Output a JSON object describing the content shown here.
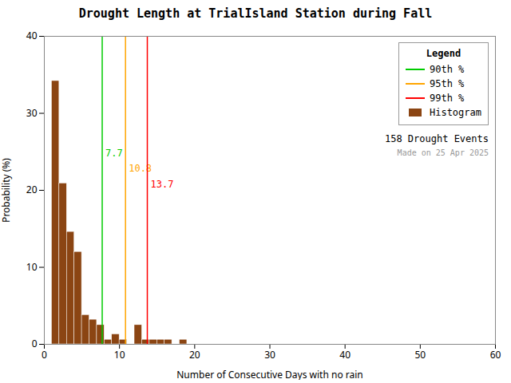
{
  "chart_data": {
    "type": "histogram",
    "title": "Drought Length at TrialIsland Station during Fall",
    "xlabel": "Number of Consecutive Days with no rain",
    "ylabel": "Probability (%)",
    "bins": [
      1,
      2,
      3,
      4,
      5,
      6,
      7,
      8,
      9,
      10,
      11,
      12,
      13,
      14,
      15,
      16,
      17,
      18,
      19,
      20,
      21
    ],
    "series": [
      {
        "name": "90th %",
        "type": "vline",
        "color": "#00CC00",
        "values": [
          7.7
        ],
        "data_labels": true
      },
      {
        "name": "95th %",
        "type": "vline",
        "color": "#FFA500",
        "values": [
          10.8
        ],
        "data_labels": true
      },
      {
        "name": "99th %",
        "type": "vline",
        "color": "#FF0000",
        "values": [
          13.7
        ],
        "data_labels": true
      },
      {
        "name": "Histogram",
        "type": "bar",
        "color": "#8B4513",
        "values": [
          34.2,
          20.9,
          14.6,
          12.0,
          3.8,
          3.2,
          2.5,
          0.6,
          1.3,
          0.6,
          0.0,
          2.5,
          0.6,
          0.6,
          0.6,
          0.6,
          0.0,
          0.6,
          0.0,
          0.0
        ]
      }
    ],
    "xlim": [
      0,
      60
    ],
    "ylim": [
      0,
      40
    ],
    "xticks": [
      0,
      10,
      20,
      30,
      40,
      50,
      60
    ],
    "yticks": [
      0,
      10,
      20,
      30,
      40
    ],
    "grid": false,
    "legend": "upper right",
    "legend_title": "Legend",
    "annotations": [
      "158 Drought Events",
      "Made on 25 Apr 2025"
    ]
  }
}
